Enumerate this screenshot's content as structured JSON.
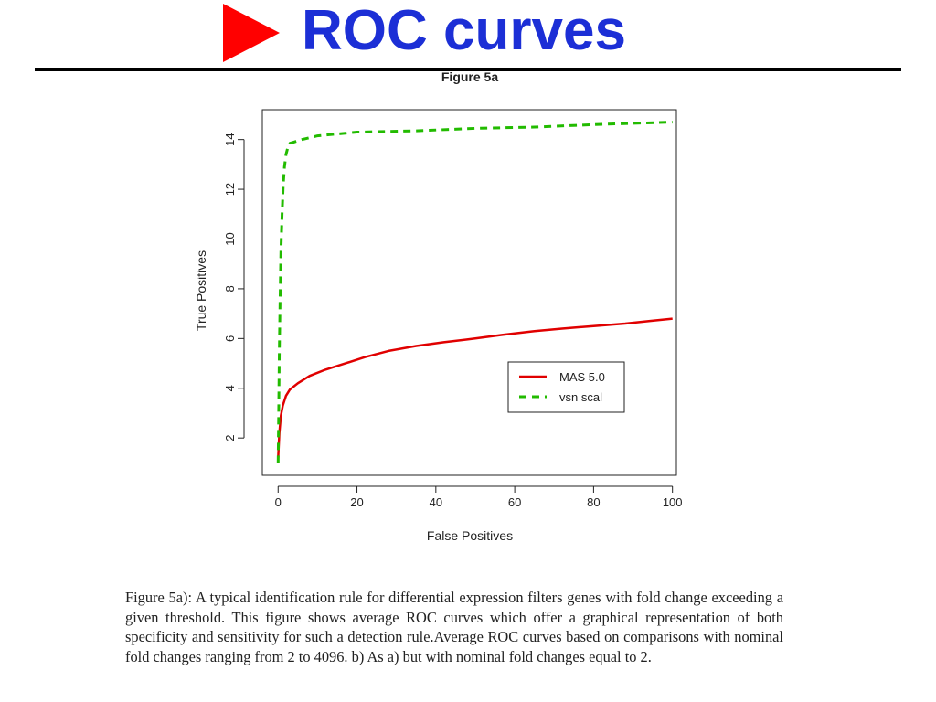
{
  "slide": {
    "title": "ROC curves",
    "bullet_color": "#ff0000",
    "title_color": "#1c2fd6"
  },
  "chart_data": {
    "type": "line",
    "title": "Figure 5a",
    "xlabel": "False Positives",
    "ylabel": "True Positives",
    "xlim": [
      -4,
      101
    ],
    "ylim": [
      0.5,
      15.2
    ],
    "xticks": [
      0,
      20,
      40,
      60,
      80,
      100
    ],
    "yticks": [
      2,
      4,
      6,
      8,
      10,
      12,
      14
    ],
    "grid": false,
    "legend_position": "right",
    "series": [
      {
        "name": "MAS 5.0",
        "color": "#e00000",
        "style": "solid",
        "x": [
          0,
          0.3,
          0.7,
          1.2,
          2,
          3,
          5,
          8,
          12,
          17,
          22,
          28,
          35,
          42,
          50,
          57,
          65,
          72,
          80,
          88,
          94,
          100
        ],
        "y": [
          1.2,
          2.2,
          2.9,
          3.3,
          3.7,
          3.95,
          4.2,
          4.5,
          4.75,
          5.0,
          5.25,
          5.5,
          5.7,
          5.85,
          6.0,
          6.15,
          6.3,
          6.4,
          6.5,
          6.6,
          6.7,
          6.8
        ]
      },
      {
        "name": "vsn scal",
        "color": "#22bb00",
        "style": "dashed",
        "x": [
          0,
          0.15,
          0.3,
          0.5,
          0.7,
          1,
          1.3,
          1.6,
          2,
          2.5,
          3,
          4,
          6,
          10,
          20,
          35,
          50,
          65,
          80,
          100
        ],
        "y": [
          1.0,
          3.0,
          5.5,
          7.5,
          9.5,
          11.0,
          12.2,
          12.9,
          13.4,
          13.7,
          13.85,
          13.9,
          14.0,
          14.15,
          14.3,
          14.35,
          14.45,
          14.5,
          14.6,
          14.7
        ]
      }
    ]
  },
  "caption": {
    "text": "Figure 5a): A typical identification rule for differential expression filters genes with fold change exceeding a given threshold. This figure shows average ROC curves which offer a graphical representation of both specificity and sensitivity for such a detection rule.Average ROC curves based on comparisons with nominal fold changes ranging from 2 to 4096. b) As a) but with nominal fold changes equal to 2."
  }
}
